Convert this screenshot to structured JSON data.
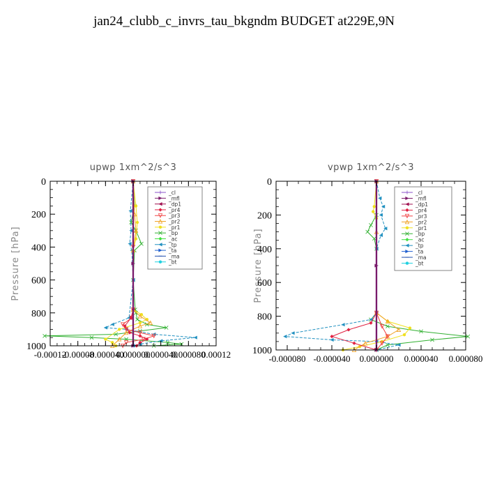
{
  "title": "jan24_clubb_c_invrs_tau_bkgndm  BUDGET at229E,9N",
  "legend_entries": [
    {
      "name": "_cl",
      "color": "#8a52c8",
      "marker": "plus"
    },
    {
      "name": "_mfl",
      "color": "#7a1a6a",
      "marker": "tri-right"
    },
    {
      "name": "_dp1",
      "color": "#a01050",
      "marker": "tri-left"
    },
    {
      "name": "_pr4",
      "color": "#e02040",
      "marker": "diamond"
    },
    {
      "name": "_pr3",
      "color": "#f04040",
      "marker": "tri-down"
    },
    {
      "name": "_pr2",
      "color": "#f0a020",
      "marker": "tri-up"
    },
    {
      "name": "_pr1",
      "color": "#f0e020",
      "marker": "circle"
    },
    {
      "name": "_bp",
      "color": "#30b030",
      "marker": "x"
    },
    {
      "name": "_ac",
      "color": "#40e040",
      "marker": "diamond"
    },
    {
      "name": "_tp",
      "color": "#2090c0",
      "marker": "tri-left"
    },
    {
      "name": "_ta",
      "color": "#2060d0",
      "marker": "arrow"
    },
    {
      "name": "_ma",
      "color": "#2050b0",
      "marker": "dash"
    },
    {
      "name": "_bt",
      "color": "#20d0e0",
      "marker": "circle"
    }
  ],
  "chart_data": [
    {
      "type": "line",
      "title": "upwp   1xm^2/s^3",
      "ylabel": "Pressure [hPa]",
      "xlabel": "",
      "xlim": [
        -0.00012,
        0.00012
      ],
      "ylim": [
        1000,
        0
      ],
      "xticks": [
        -0.00012,
        -8e-05,
        -4e-05,
        0.0,
        4e-05,
        8e-05,
        0.00012
      ],
      "xtick_labels": [
        "-0.00012",
        "-0.00008",
        "-0.000040",
        "0.000000",
        "0.000040",
        "0.000080",
        "0.00012"
      ],
      "yticks": [
        0,
        200,
        400,
        600,
        800,
        1000
      ],
      "ytick_labels": [
        "0",
        "200",
        "400",
        "600",
        "800",
        "1000"
      ],
      "legend_placement": "top-right",
      "series": [
        {
          "name": "_bp",
          "x": [
            0,
            2e-06,
            -3e-06,
            4e-06,
            1.2e-05,
            2e-06,
            0.0,
            3e-06,
            4e-06,
            6e-06,
            2e-05,
            4.8e-05,
            1e-05,
            -2.5e-05,
            -0.000128,
            -6e-05,
            -1e-05,
            5e-05,
            7e-05,
            3e-05
          ],
          "y": [
            0,
            150,
            250,
            300,
            380,
            420,
            600,
            780,
            800,
            840,
            870,
            890,
            910,
            930,
            940,
            950,
            960,
            980,
            990,
            1000
          ]
        },
        {
          "name": "_tp",
          "x": [
            0,
            -4e-06,
            -3e-06,
            -5e-06,
            -2e-06,
            0.0,
            -6e-06,
            -3e-05,
            -4e-05,
            -1e-05,
            3e-05,
            9e-05,
            4e-05,
            1e-05,
            0.0
          ],
          "y": [
            0,
            180,
            300,
            380,
            420,
            600,
            830,
            870,
            890,
            900,
            930,
            950,
            970,
            990,
            1000
          ]
        },
        {
          "name": "_pr1",
          "x": [
            0,
            4e-06,
            6e-06,
            4e-06,
            0.0,
            0.0,
            1.2e-05,
            2e-05,
            1e-05,
            -2e-05,
            -4e-05,
            -3e-05,
            -2.5e-05
          ],
          "y": [
            0,
            150,
            250,
            350,
            420,
            780,
            810,
            840,
            860,
            900,
            960,
            980,
            1000
          ]
        },
        {
          "name": "_pr2",
          "x": [
            0,
            2e-06,
            4e-06,
            0.0,
            0.0,
            1e-05,
            2.5e-05,
            1e-05,
            -1e-05,
            -2e-05,
            -3e-05
          ],
          "y": [
            0,
            200,
            300,
            420,
            780,
            820,
            860,
            880,
            920,
            960,
            1000
          ]
        },
        {
          "name": "_pr3",
          "x": [
            0,
            0.0,
            0.0,
            -2e-06,
            -1.5e-05,
            -1e-05,
            1e-05,
            3e-05,
            1.5e-05,
            -1e-05,
            -1.5e-05
          ],
          "y": [
            0,
            400,
            780,
            830,
            870,
            900,
            920,
            940,
            960,
            980,
            1000
          ]
        },
        {
          "name": "_pr4",
          "x": [
            0,
            0.0,
            -3e-06,
            -1.2e-05,
            -5e-06,
            1e-05,
            2e-05,
            1e-05,
            5e-06
          ],
          "y": [
            0,
            780,
            830,
            880,
            920,
            940,
            960,
            980,
            1000
          ]
        },
        {
          "name": "_cl",
          "x": [
            0,
            0.0,
            0.0
          ],
          "y": [
            0,
            500,
            1000
          ]
        },
        {
          "name": "_mfl",
          "x": [
            0,
            0.0,
            0.0
          ],
          "y": [
            0,
            500,
            1000
          ]
        }
      ]
    },
    {
      "type": "line",
      "title": "vpwp   1xm^2/s^3",
      "ylabel": "Pressure [hPa]",
      "xlabel": "",
      "xlim": [
        -9e-05,
        8e-05
      ],
      "ylim": [
        1000,
        0
      ],
      "xticks": [
        -8e-05,
        -4e-05,
        0.0,
        4e-05,
        8e-05
      ],
      "xtick_labels": [
        "-0.000080",
        "-0.000040",
        "0.000000",
        "0.000040",
        "0.000080"
      ],
      "yticks": [
        0,
        200,
        400,
        600,
        800,
        1000
      ],
      "ytick_labels": [
        "0",
        "200",
        "400",
        "600",
        "800",
        "1000"
      ],
      "legend_placement": "top-right",
      "series": [
        {
          "name": "_bp",
          "x": [
            0,
            0.0,
            -5e-06,
            -8e-06,
            -2e-06,
            0.0,
            0.0,
            -5e-06,
            1e-05,
            4e-05,
            8.2e-05,
            5e-05,
            1e-05,
            0.0
          ],
          "y": [
            0,
            200,
            260,
            300,
            340,
            400,
            780,
            820,
            860,
            890,
            920,
            940,
            970,
            1000
          ]
        },
        {
          "name": "_tp",
          "x": [
            0,
            3e-06,
            6e-06,
            4e-06,
            8e-06,
            4e-06,
            0.0,
            0.0,
            -5e-06,
            -3e-05,
            -7.5e-05,
            -8.2e-05,
            -4e-05,
            0.0,
            2e-05,
            0.0
          ],
          "y": [
            0,
            100,
            150,
            200,
            280,
            320,
            400,
            780,
            820,
            850,
            900,
            920,
            940,
            950,
            970,
            1000
          ]
        },
        {
          "name": "_pr1",
          "x": [
            0,
            -2e-06,
            -3e-06,
            0.0,
            0.0,
            1e-05,
            3e-05,
            2.5e-05,
            5e-06,
            -1.5e-05,
            -3e-05
          ],
          "y": [
            0,
            150,
            180,
            220,
            780,
            830,
            870,
            910,
            950,
            980,
            1000
          ]
        },
        {
          "name": "_pr2",
          "x": [
            0,
            0.0,
            0.0,
            1e-05,
            2e-05,
            1e-05,
            -1e-05,
            -2e-05
          ],
          "y": [
            0,
            300,
            780,
            830,
            880,
            920,
            960,
            1000
          ]
        },
        {
          "name": "_pr4",
          "x": [
            0,
            0.0,
            -5e-06,
            -2.5e-05,
            -4e-05,
            -2e-05,
            0.0
          ],
          "y": [
            0,
            780,
            840,
            880,
            920,
            960,
            1000
          ]
        },
        {
          "name": "_pr3",
          "x": [
            0,
            0.0,
            5e-06,
            1e-05,
            5e-06,
            0.0
          ],
          "y": [
            0,
            780,
            860,
            920,
            960,
            1000
          ]
        },
        {
          "name": "_cl",
          "x": [
            0,
            0.0,
            0.0
          ],
          "y": [
            0,
            500,
            1000
          ]
        },
        {
          "name": "_mfl",
          "x": [
            0,
            0.0,
            0.0
          ],
          "y": [
            0,
            500,
            1000
          ]
        }
      ]
    }
  ]
}
